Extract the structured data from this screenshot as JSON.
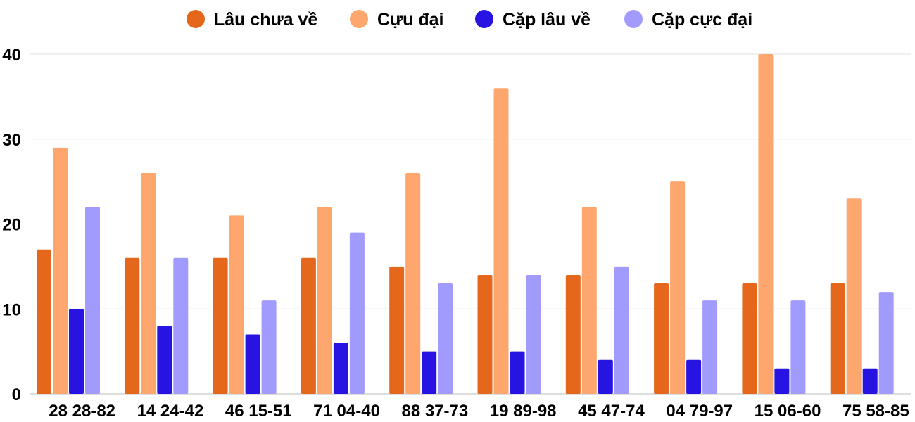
{
  "chart_data": {
    "type": "bar",
    "title": "",
    "xlabel": "",
    "ylabel": "",
    "ylim": [
      0,
      40
    ],
    "yticks": [
      0,
      10,
      20,
      30,
      40
    ],
    "grid": true,
    "legend_position": "top-center",
    "categories": [
      "28 28-82",
      "14 24-42",
      "46 15-51",
      "71 04-40",
      "88 37-73",
      "19 89-98",
      "45 47-74",
      "04 79-97",
      "15 06-60",
      "75 58-85"
    ],
    "series": [
      {
        "name": "Lâu chưa về",
        "color": "#e4671b",
        "values": [
          17,
          16,
          16,
          16,
          15,
          14,
          14,
          13,
          13,
          13
        ]
      },
      {
        "name": "Cựu đại",
        "color": "#fda66e",
        "values": [
          29,
          26,
          21,
          22,
          26,
          36,
          22,
          25,
          40,
          23
        ]
      },
      {
        "name": "Cặp lâu về",
        "color": "#2714e2",
        "values": [
          10,
          8,
          7,
          6,
          5,
          5,
          4,
          4,
          3,
          3
        ]
      },
      {
        "name": "Cặp cực đại",
        "color": "#a29bfe",
        "values": [
          22,
          16,
          11,
          19,
          13,
          14,
          15,
          11,
          11,
          12
        ]
      }
    ]
  }
}
